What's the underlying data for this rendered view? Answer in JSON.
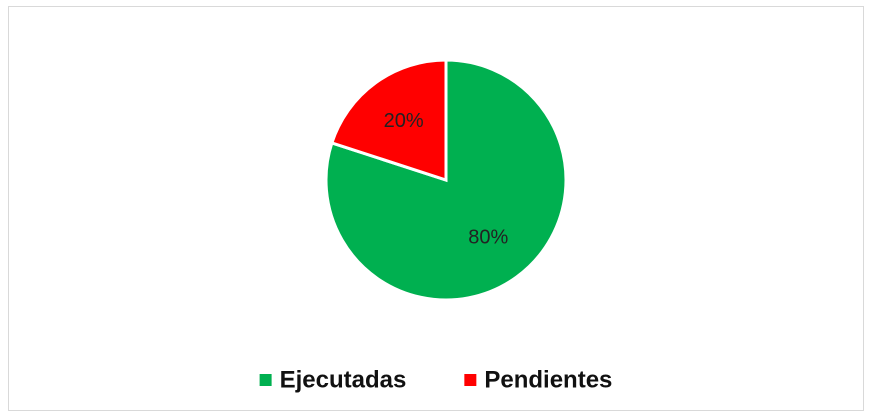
{
  "chart_data": {
    "type": "pie",
    "categories": [
      "Ejecutadas",
      "Pendientes"
    ],
    "values": [
      80,
      20
    ],
    "value_labels": [
      "80%",
      "20%"
    ],
    "colors": [
      "#00b050",
      "#ff0000"
    ],
    "legend": "bottom"
  }
}
